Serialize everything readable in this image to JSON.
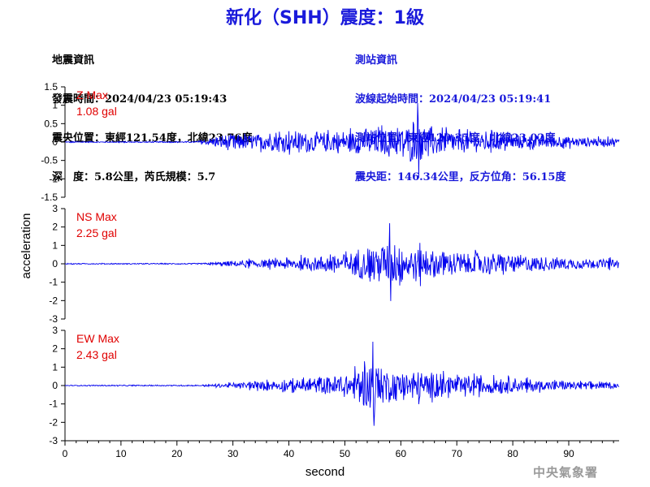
{
  "header": {
    "title": "新化（SHH）震度：1級"
  },
  "earthquake_info": {
    "heading": "地震資訊",
    "time_line": "發震時間：2024/04/23 05:19:43",
    "location_line": "震央位置：東經121.54度，北緯23.76度",
    "depth_magnitude_line": "深　度：5.8公里，芮氏規模：5.7"
  },
  "station_info": {
    "heading": "測站資訊",
    "wave_start_line": "波線起始時間：2024/04/23 05:19:41",
    "station_location_line": "測站位置：東經120.35度，北緯23.02度",
    "distance_azimuth_line": "震央距：146.34公里，反方位角：56.15度"
  },
  "watermark": "中央氣象署",
  "colors": {
    "title": "#1a1adb",
    "trace": "#0000ee",
    "max_label": "#e00000",
    "station_info": "#1a1adb"
  },
  "chart_data": {
    "type": "line",
    "xlabel": "second",
    "ylabel": "acceleration",
    "xlim": [
      0,
      99
    ],
    "xticks": [
      0,
      10,
      20,
      30,
      40,
      50,
      60,
      70,
      80,
      90
    ],
    "panels": [
      {
        "name": "Z",
        "max_label": "Z Max",
        "max_value_label": "1.08 gal",
        "max_value": 1.08,
        "ylim": [
          -1.5,
          1.5
        ],
        "yticks": [
          -1.5,
          -1,
          -0.5,
          0,
          0.5,
          1,
          1.5
        ],
        "envelope": [
          [
            0,
            0.03
          ],
          [
            23,
            0.03
          ],
          [
            24,
            0.08
          ],
          [
            26,
            0.2
          ],
          [
            29,
            0.45
          ],
          [
            33,
            0.42
          ],
          [
            40,
            0.5
          ],
          [
            48,
            0.55
          ],
          [
            55,
            0.68
          ],
          [
            60,
            0.8
          ],
          [
            63,
            1.08
          ],
          [
            66,
            0.75
          ],
          [
            72,
            0.55
          ],
          [
            80,
            0.42
          ],
          [
            88,
            0.3
          ],
          [
            99,
            0.2
          ]
        ]
      },
      {
        "name": "NS",
        "max_label": "NS Max",
        "max_value_label": "2.25 gal",
        "max_value": 2.25,
        "ylim": [
          -3,
          3
        ],
        "yticks": [
          -3,
          -2,
          -1,
          0,
          1,
          2,
          3
        ],
        "envelope": [
          [
            0,
            0.05
          ],
          [
            24,
            0.06
          ],
          [
            27,
            0.18
          ],
          [
            32,
            0.4
          ],
          [
            38,
            0.5
          ],
          [
            45,
            0.8
          ],
          [
            50,
            1.3
          ],
          [
            55,
            1.6
          ],
          [
            58,
            2.25
          ],
          [
            62,
            1.8
          ],
          [
            66,
            1.4
          ],
          [
            72,
            1.2
          ],
          [
            78,
            1.0
          ],
          [
            85,
            0.8
          ],
          [
            92,
            0.55
          ],
          [
            99,
            0.4
          ]
        ]
      },
      {
        "name": "EW",
        "max_label": "EW Max",
        "max_value_label": "2.43 gal",
        "max_value": 2.43,
        "ylim": [
          -3,
          3
        ],
        "yticks": [
          -3,
          -2,
          -1,
          0,
          1,
          2,
          3
        ],
        "envelope": [
          [
            0,
            0.05
          ],
          [
            24,
            0.06
          ],
          [
            28,
            0.2
          ],
          [
            33,
            0.4
          ],
          [
            40,
            0.6
          ],
          [
            46,
            0.9
          ],
          [
            51,
            1.5
          ],
          [
            55,
            2.43
          ],
          [
            58,
            1.7
          ],
          [
            62,
            1.6
          ],
          [
            66,
            1.3
          ],
          [
            72,
            1.0
          ],
          [
            80,
            0.7
          ],
          [
            88,
            0.5
          ],
          [
            99,
            0.3
          ]
        ]
      }
    ]
  }
}
